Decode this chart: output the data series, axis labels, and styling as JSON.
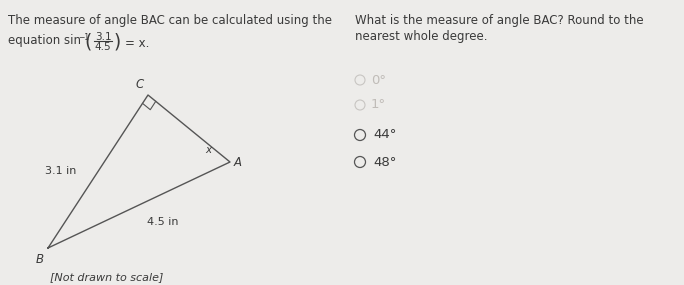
{
  "bg_color": "#edecea",
  "left_text_line1": "The measure of angle BAC can be calculated using the",
  "right_text_line1": "What is the measure of angle BAC? Round to the",
  "right_text_line2": "nearest whole degree.",
  "choices": [
    "44°",
    "48°"
  ],
  "not_drawn_label": "[Not drawn to scale]",
  "text_color": "#3a3a3a",
  "font_size_body": 8.5,
  "font_size_choice": 9.5,
  "font_size_label": 8.5,
  "font_size_eq": 8.5
}
